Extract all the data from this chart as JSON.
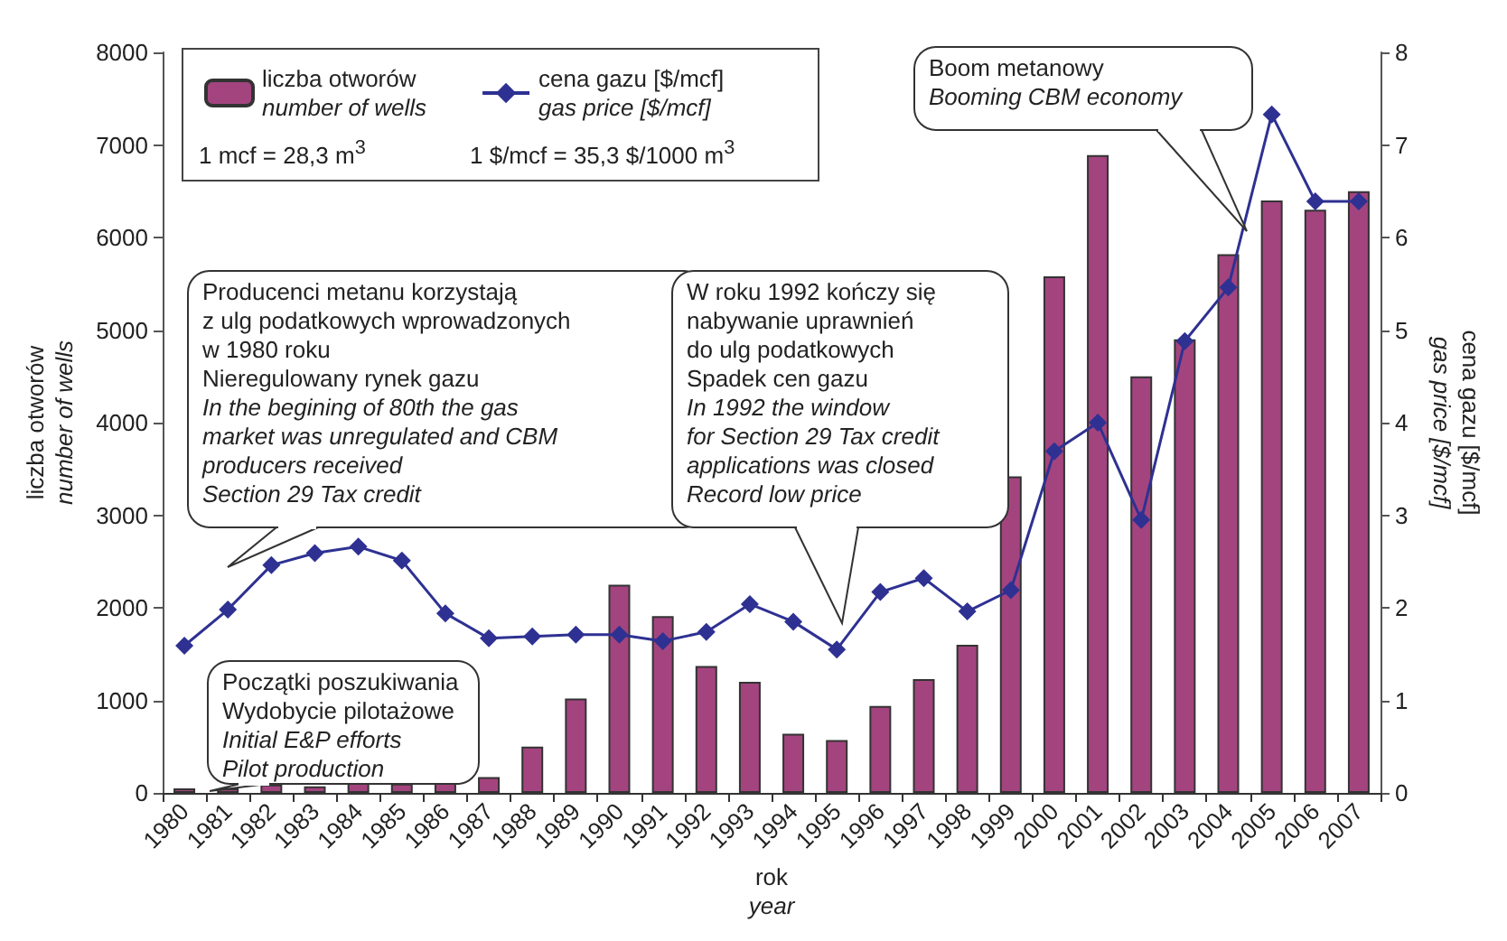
{
  "chart_data": {
    "type": "bar",
    "xlabel": "rok\nyear",
    "ylabel": "liczba otworów\nnumber of wells",
    "y2label": "cena gazu [$/mcf]\ngas price [$/mcf]",
    "categories": [
      "1980",
      "1981",
      "1982",
      "1983",
      "1984",
      "1985",
      "1986",
      "1987",
      "1988",
      "1989",
      "1990",
      "1991",
      "1992",
      "1993",
      "1994",
      "1995",
      "1996",
      "1997",
      "1998",
      "1999",
      "2000",
      "2001",
      "2002",
      "2003",
      "2004",
      "2005",
      "2006",
      "2007"
    ],
    "series": [
      {
        "name": "liczba otworów\nnumber of wells",
        "type": "bar",
        "color": "#a3447f",
        "values": [
          50,
          50,
          90,
          70,
          120,
          100,
          140,
          170,
          500,
          1020,
          2250,
          1910,
          1370,
          1200,
          640,
          570,
          940,
          1230,
          1600,
          3420,
          5580,
          6890,
          4500,
          4900,
          5820,
          6400,
          6300,
          6500
        ]
      },
      {
        "name": "cena gazu [$/mcf]\ngas price [$/mcf]",
        "type": "line",
        "axis": "y2",
        "color": "#2e3192",
        "marker": "diamond",
        "values": [
          1.59,
          1.98,
          2.46,
          2.59,
          2.66,
          2.51,
          1.94,
          1.67,
          1.69,
          1.71,
          1.71,
          1.64,
          1.74,
          2.04,
          1.85,
          1.55,
          2.17,
          2.32,
          1.96,
          2.19,
          3.69,
          4.0,
          2.95,
          4.88,
          5.46,
          7.33,
          6.39,
          6.39
        ]
      }
    ],
    "ylim": [
      0,
      8000
    ],
    "yticks": [
      0,
      1000,
      2000,
      3000,
      4000,
      5000,
      6000,
      7000,
      8000
    ],
    "y2lim": [
      0,
      8
    ],
    "y2ticks": [
      0,
      1,
      2,
      3,
      4,
      5,
      6,
      7,
      8
    ],
    "grid": false,
    "legend": "top left",
    "annotations": [
      "Producenci metanu korzystają\nz ulg podatkowych wprowadzonych\nw 1980 roku\nNieregulowany rynek gazu",
      "In the begining of 80th the gas\nmarket was unregulated and CBM\nproducers received\nSection 29 Tax credit",
      "W roku 1992 kończy się\nnabywanie uprawnień\ndo ulg podatkowych\nSpadek cen gazu",
      "In 1992 the window\nfor Section 29 Tax credit\napplications was closed\nRecord low price",
      "Boom metanowy",
      "Booming CBM economy",
      "Początki poszukiwania\nWydobycie pilotażowe",
      "Initial E&P efforts\nPilot production",
      "1 mcf = 28,3 m$^{3}$",
      "1 $/mcf = 35,3 $/1000 m$^{3}$"
    ]
  }
}
